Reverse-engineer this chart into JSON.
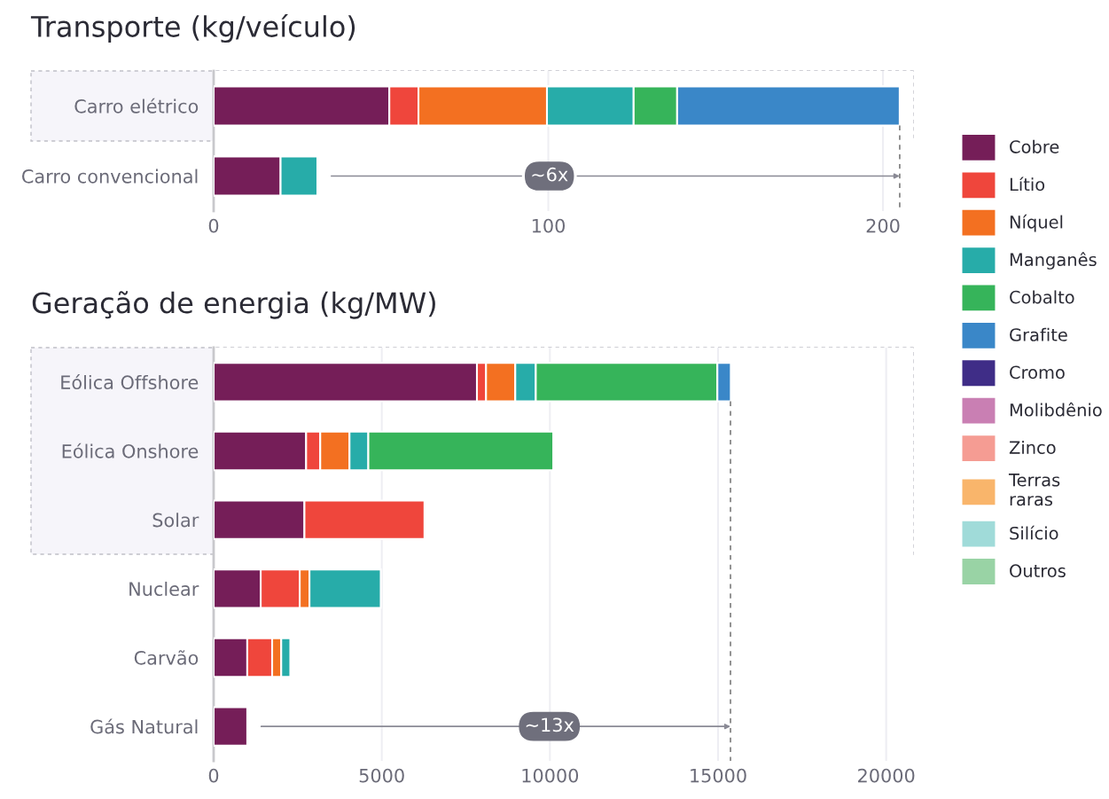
{
  "chart_data": [
    {
      "type": "bar",
      "orientation": "horizontal",
      "stacked": true,
      "title": "Transporte (kg/veículo)",
      "categories": [
        "Carro elétrico",
        "Carro convencional"
      ],
      "series": [
        {
          "name": "Cobre",
          "color": "#751e58",
          "values": [
            52.5,
            20
          ]
        },
        {
          "name": "Lítio",
          "color": "#ef463c",
          "values": [
            8.7,
            null
          ]
        },
        {
          "name": "Níquel",
          "color": "#f37021",
          "values": [
            38.4,
            null
          ]
        },
        {
          "name": "Manganês",
          "color": "#27aca9",
          "values": [
            25.9,
            11
          ]
        },
        {
          "name": "Cobalto",
          "color": "#36b45a",
          "values": [
            13,
            null
          ]
        },
        {
          "name": "Grafite",
          "color": "#3a87c8",
          "values": [
            66.5,
            null
          ]
        }
      ],
      "xlim": [
        0,
        209
      ],
      "xticks": [
        0,
        100,
        200
      ],
      "grid": "x",
      "legend": "right",
      "ref_lines": [
        {
          "axis": "x",
          "value": 205,
          "color": "#888888",
          "line_style": "dashed"
        }
      ],
      "bands": [
        {
          "axis": "y",
          "from": "Carro elétrico",
          "to": "Carro elétrico",
          "color": "#f6f5fa"
        }
      ],
      "annotations": [
        {
          "text": "~6x",
          "x": 205,
          "y": "Carro convencional"
        }
      ]
    },
    {
      "type": "bar",
      "orientation": "horizontal",
      "stacked": true,
      "title": "Geração de energia (kg/MW)",
      "categories": [
        "Eólica Offshore",
        "Eólica Onshore",
        "Solar",
        "Nuclear",
        "Carvão",
        "Gás Natural"
      ],
      "series": [
        {
          "name": "Cobre",
          "color": "#751e58",
          "values": [
            7830,
            2750,
            2700,
            1400,
            1000,
            1000
          ]
        },
        {
          "name": "Lítio",
          "color": "#ef463c",
          "values": [
            270,
            420,
            3570,
            1160,
            740,
            null
          ]
        },
        {
          "name": "Níquel",
          "color": "#f37021",
          "values": [
            870,
            870,
            null,
            290,
            270,
            null
          ]
        },
        {
          "name": "Manganês",
          "color": "#27aca9",
          "values": [
            610,
            560,
            null,
            2120,
            270,
            null
          ]
        },
        {
          "name": "Cobalto",
          "color": "#36b45a",
          "values": [
            5400,
            5500,
            null,
            null,
            null,
            null
          ]
        },
        {
          "name": "Grafite",
          "color": "#3a87c8",
          "values": [
            400,
            null,
            null,
            null,
            null,
            null
          ]
        },
        {
          "name": "Cromo",
          "color": "#3f2d87",
          "values": [
            null,
            null,
            null,
            null,
            null,
            null
          ]
        },
        {
          "name": "Molibdênio",
          "color": "#c97fb3",
          "values": [
            null,
            null,
            null,
            null,
            null,
            null
          ]
        },
        {
          "name": "Zinco",
          "color": "#f59c93",
          "values": [
            null,
            null,
            null,
            null,
            null,
            null
          ]
        },
        {
          "name": "Terras raras",
          "color": "#f9b56b",
          "values": [
            null,
            null,
            null,
            null,
            null,
            null
          ]
        },
        {
          "name": "Silício",
          "color": "#a0dbd9",
          "values": [
            null,
            null,
            null,
            null,
            null,
            null
          ]
        },
        {
          "name": "Outros",
          "color": "#99d3a5",
          "values": [
            null,
            null,
            null,
            null,
            null,
            null
          ]
        }
      ],
      "xlim": [
        0,
        20800
      ],
      "xticks": [
        0,
        5000,
        10000,
        15000,
        20000
      ],
      "grid": "x",
      "legend": "right",
      "ref_lines": [
        {
          "axis": "x",
          "value": 15370,
          "color": "#888888",
          "line_style": "dashed"
        }
      ],
      "bands": [
        {
          "axis": "y",
          "from": "Eólica Offshore",
          "to": "Solar",
          "color": "#f6f5fa"
        }
      ],
      "annotations": [
        {
          "text": "~13x",
          "x": 15370,
          "y": "Gás Natural"
        }
      ]
    }
  ]
}
